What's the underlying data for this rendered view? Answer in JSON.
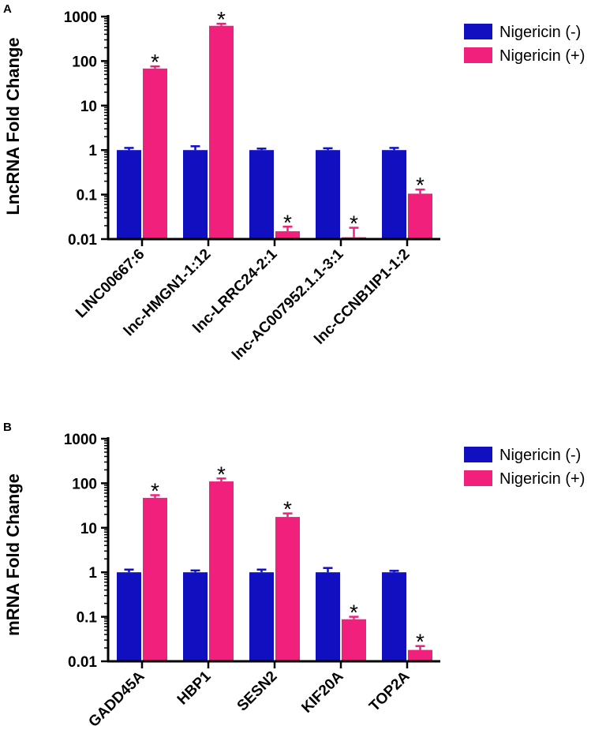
{
  "chart_data": [
    {
      "panel": "A",
      "type": "bar",
      "yscale": "log",
      "ylabel": "LncRNA Fold Change",
      "ylim": [
        0.01,
        1000
      ],
      "yticks": [
        "0.01",
        "0.1",
        "1",
        "10",
        "100",
        "1000"
      ],
      "categories": [
        "LINC00667:6",
        "lnc-HMGN1-1:12",
        "lnc-LRRC24-2:1",
        "lnc-AC007952.1.1-3:1",
        "lnc-CCNB1IP1-1:2"
      ],
      "series": [
        {
          "name": "Nigericin (-)",
          "color": "#1010c0",
          "values": [
            1,
            1,
            1,
            1,
            1
          ],
          "err_upper": [
            1.12,
            1.22,
            1.08,
            1.1,
            1.12
          ]
        },
        {
          "name": "Nigericin (+)",
          "color": "#f0207c",
          "values": [
            68,
            620,
            0.015,
            0.011,
            0.105
          ],
          "err_upper": [
            76,
            690,
            0.019,
            0.018,
            0.13
          ]
        }
      ],
      "significance": [
        "*",
        "*",
        "*",
        "*",
        "*"
      ],
      "legend": [
        "Nigericin (-)",
        "Nigericin (+)"
      ]
    },
    {
      "panel": "B",
      "type": "bar",
      "yscale": "log",
      "ylabel": "mRNA Fold Change",
      "ylim": [
        0.01,
        1000
      ],
      "yticks": [
        "0.01",
        "0.1",
        "1",
        "10",
        "100",
        "1000"
      ],
      "categories": [
        "GADD45A",
        "HBP1",
        "SESN2",
        "KIF20A",
        "TOP2A"
      ],
      "series": [
        {
          "name": "Nigericin (-)",
          "color": "#1010c0",
          "values": [
            1,
            1,
            1,
            1,
            1
          ],
          "err_upper": [
            1.15,
            1.1,
            1.15,
            1.25,
            1.08
          ]
        },
        {
          "name": "Nigericin (+)",
          "color": "#f0207c",
          "values": [
            47,
            110,
            17.5,
            0.088,
            0.018
          ],
          "err_upper": [
            54,
            128,
            21,
            0.1,
            0.022
          ]
        }
      ],
      "significance": [
        "*",
        "*",
        "*",
        "*",
        "*"
      ],
      "legend": [
        "Nigericin (-)",
        "Nigericin (+)"
      ]
    }
  ]
}
